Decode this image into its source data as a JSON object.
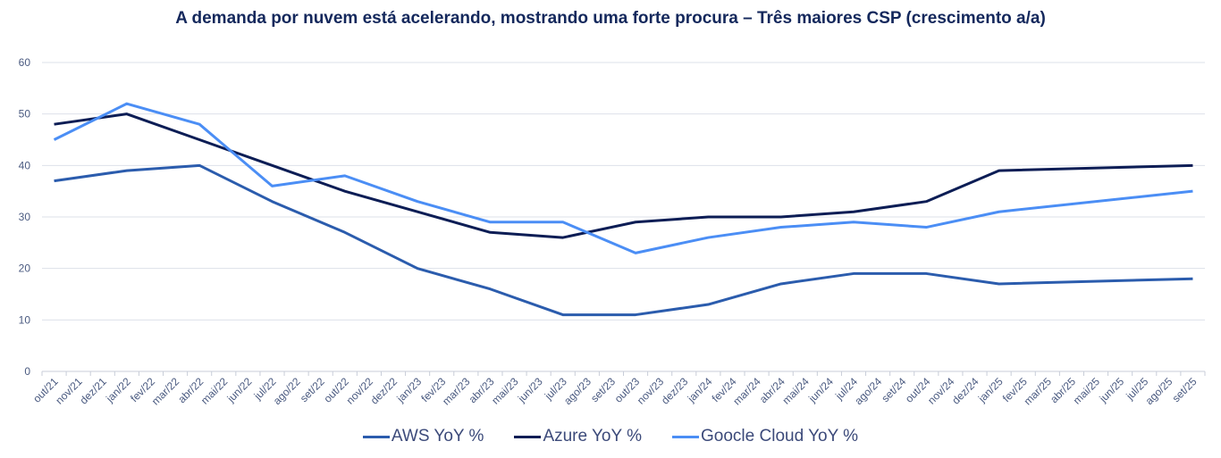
{
  "chart_data": {
    "type": "line",
    "title": "A demanda por nuvem está acelerando, mostrando uma forte procura – Três maiores CSP (crescimento a/a)",
    "xlabel": "",
    "ylabel": "",
    "ylim": [
      0,
      60
    ],
    "yticks": [
      "0",
      "10",
      "20",
      "30",
      "40",
      "50",
      "60"
    ],
    "grid": true,
    "legend_position": "bottom",
    "categories": [
      "out/21",
      "nov/21",
      "dez/21",
      "jan/22",
      "fev/22",
      "mar/22",
      "abr/22",
      "mai/22",
      "jun/22",
      "jul/22",
      "ago/22",
      "set/22",
      "out/22",
      "nov/22",
      "dez/22",
      "jan/23",
      "fev/23",
      "mar/23",
      "abr/23",
      "mai/23",
      "jun/23",
      "jul/23",
      "ago/23",
      "set/23",
      "out/23",
      "nov/23",
      "dez/23",
      "jan/24",
      "fev/24",
      "mar/24",
      "abr/24",
      "mai/24",
      "jun/24",
      "jul/24",
      "ago/24",
      "set/24",
      "out/24",
      "nov/24",
      "dez/24",
      "jan/25",
      "fev/25",
      "mar/25",
      "abr/25",
      "mai/25",
      "jun/25",
      "jul/25",
      "ago/25",
      "set/25"
    ],
    "x": [
      "out/21",
      "jan/22",
      "abr/22",
      "jul/22",
      "out/22",
      "jan/23",
      "abr/23",
      "jul/23",
      "out/23",
      "jan/24",
      "abr/24",
      "jul/24",
      "out/24",
      "jan/25",
      "set/25"
    ],
    "series": [
      {
        "name": "AWS YoY %",
        "color": "#2b5cad",
        "values": [
          37,
          39,
          40,
          33,
          27,
          20,
          16,
          11,
          11,
          13,
          17,
          19,
          19,
          17,
          18
        ]
      },
      {
        "name": "Azure YoY %",
        "color": "#0c1d55",
        "values": [
          48,
          50,
          45,
          40,
          35,
          31,
          27,
          26,
          29,
          30,
          30,
          31,
          33,
          39,
          40
        ]
      },
      {
        "name": "Goocle Cloud YoY %",
        "color": "#4b8ef5",
        "values": [
          45,
          52,
          48,
          36,
          38,
          33,
          29,
          29,
          23,
          26,
          28,
          29,
          28,
          31,
          35
        ]
      }
    ]
  }
}
